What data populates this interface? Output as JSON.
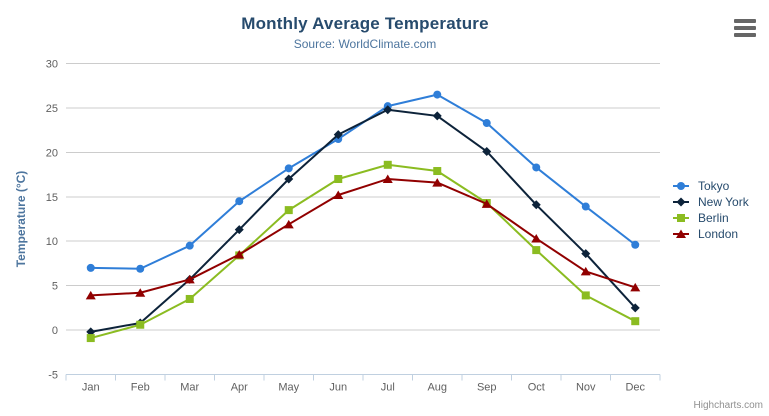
{
  "credits": "Highcharts.com",
  "menu_icon": "hamburger-menu-icon",
  "colors": {
    "title": "#274b6d",
    "subtitle": "#4d759e",
    "axis_label": "#606060",
    "axis_title": "#4d759e",
    "grid": "#cccccc",
    "axis_line": "#c0d0e0",
    "legend_text": "#274b6d",
    "credits_text": "#909090",
    "menu": "#666666"
  },
  "chart_data": {
    "type": "line",
    "title": "Monthly Average Temperature",
    "subtitle": "Source: WorldClimate.com",
    "categories": [
      "Jan",
      "Feb",
      "Mar",
      "Apr",
      "May",
      "Jun",
      "Jul",
      "Aug",
      "Sep",
      "Oct",
      "Nov",
      "Dec"
    ],
    "series": [
      {
        "name": "Tokyo",
        "color": "#2f7ed8",
        "marker": "circle",
        "values": [
          7.0,
          6.9,
          9.5,
          14.5,
          18.2,
          21.5,
          25.2,
          26.5,
          23.3,
          18.3,
          13.9,
          9.6
        ]
      },
      {
        "name": "New York",
        "color": "#0d233a",
        "marker": "diamond",
        "values": [
          -0.2,
          0.8,
          5.7,
          11.3,
          17.0,
          22.0,
          24.8,
          24.1,
          20.1,
          14.1,
          8.6,
          2.5
        ]
      },
      {
        "name": "Berlin",
        "color": "#8bbc21",
        "marker": "square",
        "values": [
          -0.9,
          0.6,
          3.5,
          8.4,
          13.5,
          17.0,
          18.6,
          17.9,
          14.3,
          9.0,
          3.9,
          1.0
        ]
      },
      {
        "name": "London",
        "color": "#910000",
        "marker": "triangle",
        "values": [
          3.9,
          4.2,
          5.7,
          8.5,
          11.9,
          15.2,
          17.0,
          16.6,
          14.2,
          10.3,
          6.6,
          4.8
        ]
      }
    ],
    "xlabel": "",
    "ylabel": "Temperature (°C)",
    "ylim": [
      -5,
      30
    ],
    "ytick_step": 5,
    "grid": true,
    "legend_position": "right"
  }
}
